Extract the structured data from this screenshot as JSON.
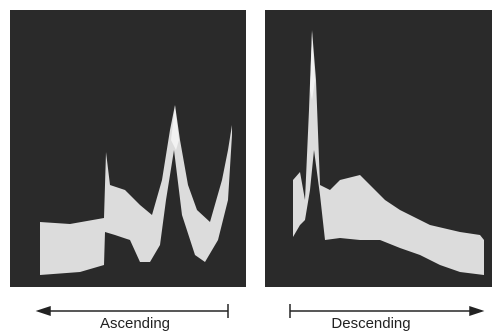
{
  "panels": [
    {
      "label": "Ascending"
    },
    {
      "label": "Descending"
    }
  ]
}
